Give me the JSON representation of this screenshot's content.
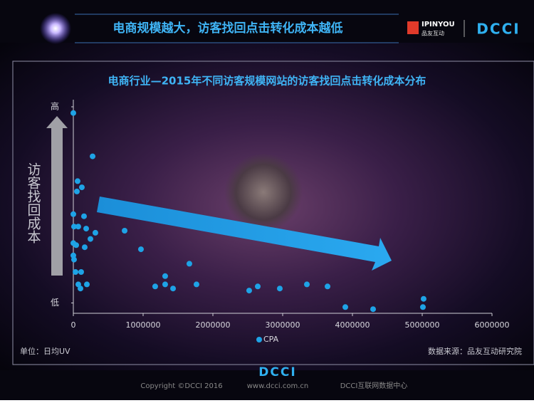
{
  "header": {
    "title": "电商规模越大，访客找回点击转化成本越低",
    "logo_brand": "IPINYOU",
    "logo_brand_cn": "品友互动",
    "logo_dcci": "DCCI"
  },
  "chart_data": {
    "type": "scatter",
    "title": "电商行业—2015年不同访客规模网站的访客找回点击转化成本分布",
    "y_label": "访客找回成本",
    "unit_note": "单位：日均UV",
    "source": "数据来源：品友互动研究院",
    "xlim": [
      0,
      6000000
    ],
    "xticks": [
      0,
      1000000,
      2000000,
      3000000,
      4000000,
      5000000,
      6000000
    ],
    "ylim": [
      0,
      100
    ],
    "yticks": [
      {
        "value": 100,
        "label": "高"
      },
      {
        "value": 5,
        "label": "低"
      }
    ],
    "series": [
      {
        "name": "CPA",
        "color": "#1ea3e6",
        "x": [
          0,
          276000,
          61000,
          122000,
          51000,
          0,
          153000,
          10000,
          71000,
          184000,
          316000,
          735000,
          245000,
          0,
          41000,
          163000,
          969000,
          0,
          10000,
          1663000,
          31000,
          112000,
          1316000,
          71000,
          194000,
          102000,
          1173000,
          1316000,
          1429000,
          1765000,
          2643000,
          2520000,
          2959000,
          3347000,
          3643000,
          3898000,
          4296000,
          5020000,
          5010000
        ],
        "values": [
          97,
          76,
          64,
          61,
          59,
          48,
          47,
          42,
          42,
          41,
          39,
          40,
          36,
          34,
          33,
          32,
          31,
          28,
          26,
          24,
          20,
          20,
          18,
          14,
          14,
          12,
          13,
          14,
          12,
          14,
          13,
          11,
          12,
          14,
          13,
          3,
          2,
          7,
          3
        ]
      }
    ]
  },
  "footer": {
    "logo": "DCCI",
    "copyright": "Copyright ©DCCI 2016",
    "site": "www.dcci.com.cn",
    "org": "DCCI互联网数据中心"
  }
}
